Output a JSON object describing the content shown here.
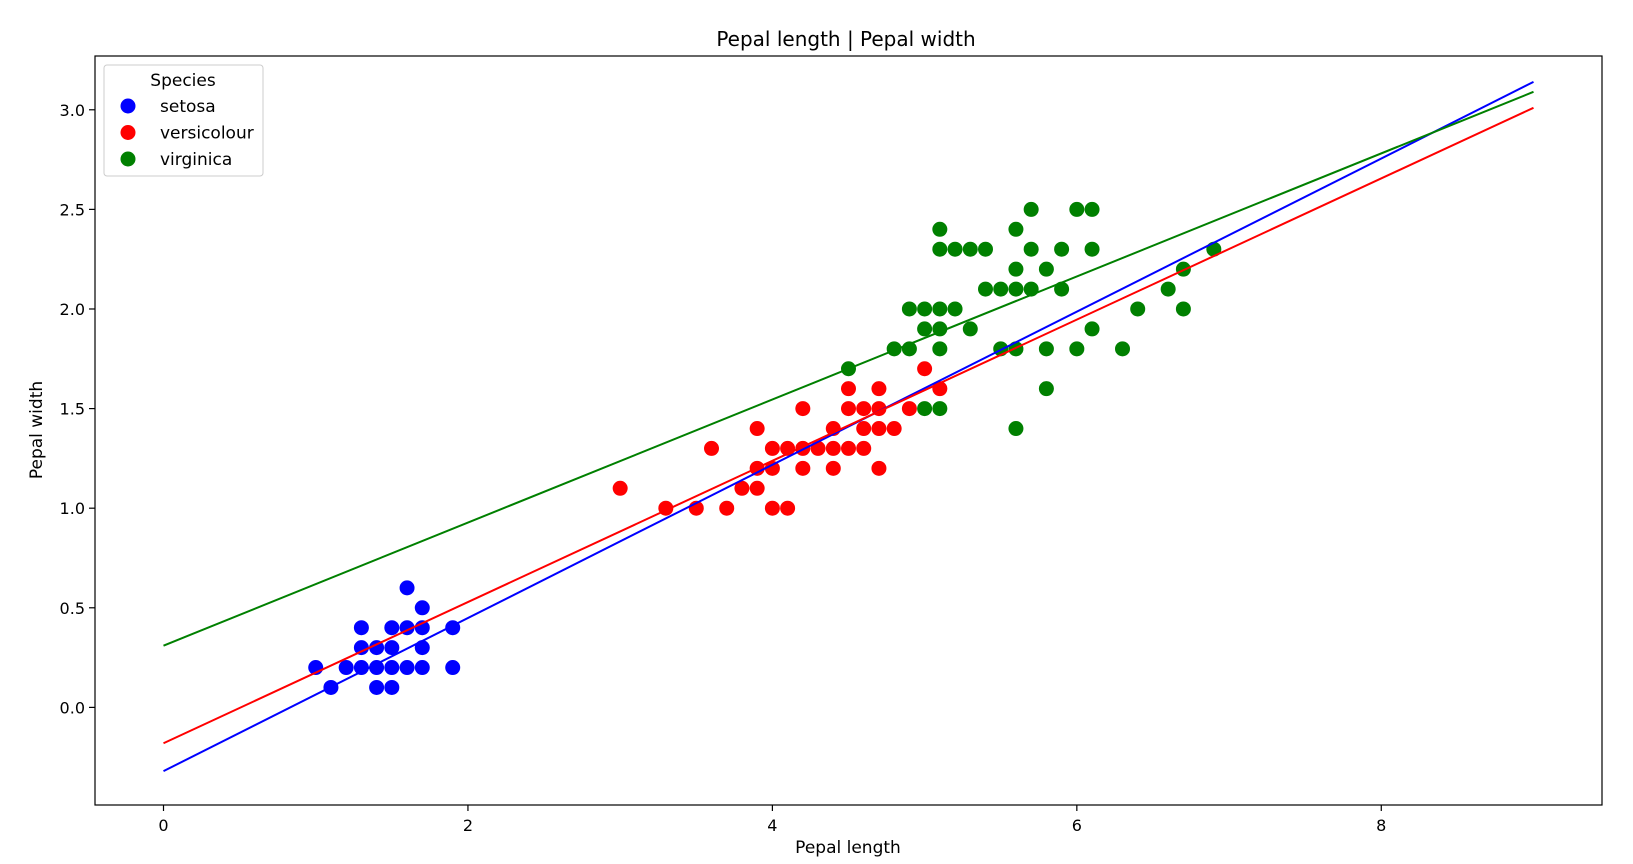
{
  "chart_data": {
    "type": "scatter",
    "title": "Pepal length | Pepal width",
    "xlabel": "Pepal length",
    "ylabel": "Pepal width",
    "xlim": [
      -0.45,
      9.45
    ],
    "ylim": [
      -0.49,
      3.27
    ],
    "xticks": [
      0,
      2,
      4,
      6,
      8
    ],
    "yticks": [
      0.0,
      0.5,
      1.0,
      1.5,
      2.0,
      2.5,
      3.0
    ],
    "xtick_labels": [
      "0",
      "2",
      "4",
      "6",
      "8"
    ],
    "ytick_labels": [
      "0.0",
      "0.5",
      "1.0",
      "1.5",
      "2.0",
      "2.5",
      "3.0"
    ],
    "grid": false,
    "legend": {
      "title": "Species",
      "position": "top-left"
    },
    "series": [
      {
        "name": "setosa",
        "color": "#0000ff",
        "points": [
          [
            1.0,
            0.2
          ],
          [
            1.1,
            0.1
          ],
          [
            1.2,
            0.2
          ],
          [
            1.3,
            0.2
          ],
          [
            1.3,
            0.3
          ],
          [
            1.3,
            0.4
          ],
          [
            1.4,
            0.1
          ],
          [
            1.4,
            0.2
          ],
          [
            1.4,
            0.3
          ],
          [
            1.5,
            0.1
          ],
          [
            1.5,
            0.2
          ],
          [
            1.5,
            0.3
          ],
          [
            1.5,
            0.4
          ],
          [
            1.6,
            0.2
          ],
          [
            1.6,
            0.4
          ],
          [
            1.6,
            0.6
          ],
          [
            1.7,
            0.2
          ],
          [
            1.7,
            0.3
          ],
          [
            1.7,
            0.4
          ],
          [
            1.7,
            0.5
          ],
          [
            1.9,
            0.2
          ],
          [
            1.9,
            0.4
          ]
        ],
        "fit_line": {
          "x": [
            0,
            9
          ],
          "y": [
            -0.32,
            3.14
          ]
        }
      },
      {
        "name": "versicolour",
        "color": "#ff0000",
        "points": [
          [
            3.0,
            1.1
          ],
          [
            3.3,
            1.0
          ],
          [
            3.5,
            1.0
          ],
          [
            3.6,
            1.3
          ],
          [
            3.7,
            1.0
          ],
          [
            3.8,
            1.1
          ],
          [
            3.9,
            1.1
          ],
          [
            3.9,
            1.2
          ],
          [
            3.9,
            1.4
          ],
          [
            4.0,
            1.0
          ],
          [
            4.0,
            1.2
          ],
          [
            4.0,
            1.3
          ],
          [
            4.1,
            1.0
          ],
          [
            4.1,
            1.3
          ],
          [
            4.2,
            1.2
          ],
          [
            4.2,
            1.3
          ],
          [
            4.2,
            1.5
          ],
          [
            4.3,
            1.3
          ],
          [
            4.4,
            1.2
          ],
          [
            4.4,
            1.3
          ],
          [
            4.4,
            1.4
          ],
          [
            4.5,
            1.3
          ],
          [
            4.5,
            1.5
          ],
          [
            4.5,
            1.6
          ],
          [
            4.6,
            1.3
          ],
          [
            4.6,
            1.4
          ],
          [
            4.6,
            1.5
          ],
          [
            4.7,
            1.2
          ],
          [
            4.7,
            1.4
          ],
          [
            4.7,
            1.5
          ],
          [
            4.7,
            1.6
          ],
          [
            4.8,
            1.4
          ],
          [
            4.9,
            1.5
          ],
          [
            5.0,
            1.7
          ],
          [
            5.1,
            1.6
          ]
        ],
        "fit_line": {
          "x": [
            0,
            9
          ],
          "y": [
            -0.18,
            3.01
          ]
        }
      },
      {
        "name": "virginica",
        "color": "#008000",
        "points": [
          [
            4.5,
            1.7
          ],
          [
            4.8,
            1.8
          ],
          [
            4.9,
            1.8
          ],
          [
            4.9,
            2.0
          ],
          [
            5.0,
            1.5
          ],
          [
            5.0,
            1.9
          ],
          [
            5.0,
            2.0
          ],
          [
            5.1,
            1.5
          ],
          [
            5.1,
            1.8
          ],
          [
            5.1,
            1.9
          ],
          [
            5.1,
            2.0
          ],
          [
            5.1,
            2.3
          ],
          [
            5.1,
            2.4
          ],
          [
            5.2,
            2.0
          ],
          [
            5.2,
            2.3
          ],
          [
            5.3,
            1.9
          ],
          [
            5.3,
            2.3
          ],
          [
            5.4,
            2.1
          ],
          [
            5.4,
            2.3
          ],
          [
            5.5,
            1.8
          ],
          [
            5.5,
            2.1
          ],
          [
            5.6,
            1.4
          ],
          [
            5.6,
            1.8
          ],
          [
            5.6,
            2.1
          ],
          [
            5.6,
            2.2
          ],
          [
            5.6,
            2.4
          ],
          [
            5.7,
            2.1
          ],
          [
            5.7,
            2.3
          ],
          [
            5.7,
            2.5
          ],
          [
            5.8,
            1.6
          ],
          [
            5.8,
            1.8
          ],
          [
            5.8,
            2.2
          ],
          [
            5.9,
            2.1
          ],
          [
            5.9,
            2.3
          ],
          [
            6.0,
            1.8
          ],
          [
            6.0,
            2.5
          ],
          [
            6.1,
            1.9
          ],
          [
            6.1,
            2.3
          ],
          [
            6.1,
            2.5
          ],
          [
            6.3,
            1.8
          ],
          [
            6.4,
            2.0
          ],
          [
            6.6,
            2.1
          ],
          [
            6.7,
            2.0
          ],
          [
            6.7,
            2.2
          ],
          [
            6.9,
            2.3
          ]
        ],
        "fit_line": {
          "x": [
            0,
            9
          ],
          "y": [
            0.31,
            3.09
          ]
        }
      }
    ]
  }
}
